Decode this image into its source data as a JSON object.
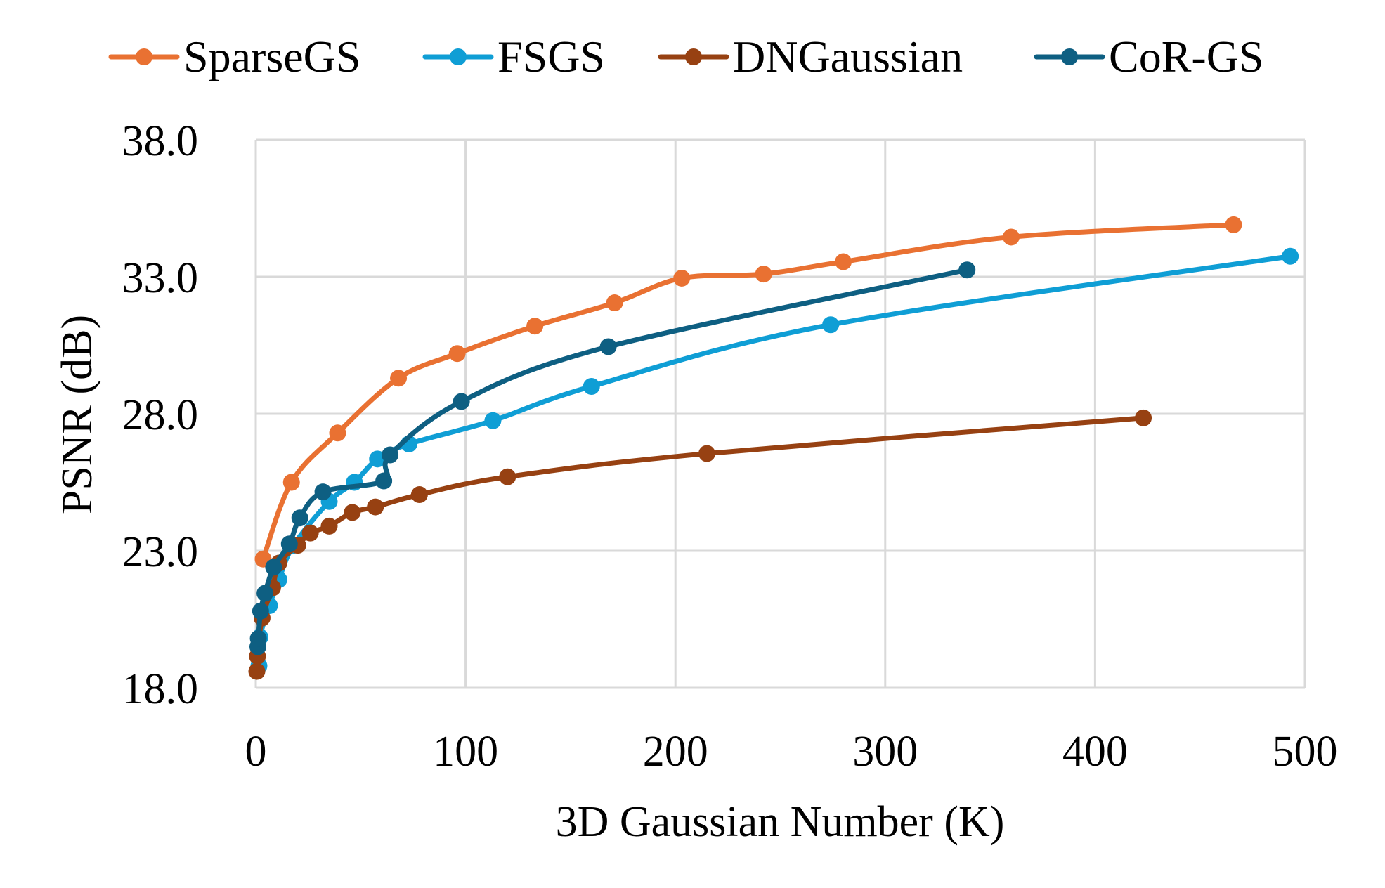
{
  "chart_data": {
    "type": "line",
    "title": "",
    "xlabel": "3D Gaussian Number (K)",
    "ylabel": "PSNR (dB)",
    "xlim": [
      0,
      500
    ],
    "ylim": [
      18.0,
      38.0
    ],
    "x_ticks": [
      "0",
      "100",
      "200",
      "300",
      "400",
      "500"
    ],
    "x_tick_values": [
      0,
      100,
      200,
      300,
      400,
      500
    ],
    "y_ticks": [
      "18.0",
      "23.0",
      "28.0",
      "33.0",
      "38.0"
    ],
    "y_tick_values": [
      18,
      23,
      28,
      33,
      38
    ],
    "grid": true,
    "legend_position": "top",
    "series": [
      {
        "name": "SparseGS",
        "color": "#E97132",
        "x": [
          3.5,
          17,
          39,
          68,
          96,
          133,
          171,
          203,
          242,
          280,
          360,
          466
        ],
        "y": [
          22.7,
          25.5,
          27.3,
          29.3,
          30.2,
          31.2,
          32.05,
          32.95,
          33.1,
          33.55,
          34.45,
          34.9
        ]
      },
      {
        "name": "FSGS",
        "color": "#0F9ED5",
        "x": [
          1.5,
          2,
          6.5,
          11,
          18,
          35,
          47,
          58,
          73,
          113,
          160,
          274,
          493
        ],
        "y": [
          18.8,
          19.85,
          21.0,
          21.95,
          23.2,
          24.8,
          25.5,
          26.35,
          26.9,
          27.75,
          29.0,
          31.25,
          33.75
        ]
      },
      {
        "name": "DNGaussian",
        "color": "#974112",
        "x": [
          0.5,
          0.8,
          3,
          8,
          11,
          20,
          26,
          35,
          46,
          57,
          78,
          120,
          215,
          423
        ],
        "y": [
          18.6,
          19.15,
          20.55,
          21.65,
          22.55,
          23.2,
          23.65,
          23.9,
          24.4,
          24.6,
          25.05,
          25.7,
          26.55,
          27.85
        ]
      },
      {
        "name": "CoR-GS",
        "color": "#0E5F82",
        "x": [
          1,
          1.2,
          2.3,
          4.4,
          8.5,
          16,
          21,
          32,
          61,
          64,
          98,
          168,
          339
        ],
        "y": [
          19.5,
          19.8,
          20.8,
          21.45,
          22.4,
          23.25,
          24.2,
          25.15,
          25.55,
          26.5,
          28.45,
          30.45,
          33.25
        ]
      }
    ]
  },
  "legend": {
    "items": [
      {
        "label": "SparseGS",
        "color": "#E97132"
      },
      {
        "label": "FSGS",
        "color": "#0F9ED5"
      },
      {
        "label": "DNGaussian",
        "color": "#974112"
      },
      {
        "label": "CoR-GS",
        "color": "#0E5F82"
      }
    ]
  },
  "axes": {
    "x_title": "3D Gaussian Number (K)",
    "y_title": "PSNR (dB)",
    "grid_color": "#D9D9D9"
  }
}
